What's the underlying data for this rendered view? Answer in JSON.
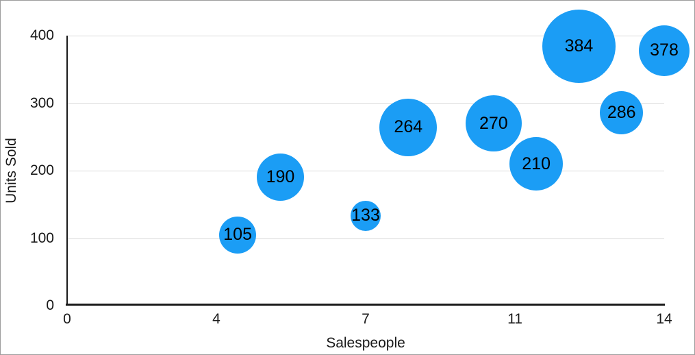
{
  "figure": {
    "background": "#ffffff",
    "border_color": "#9c9c9c",
    "text_color": "#1a1a1a"
  },
  "chart_data": {
    "type": "scatter",
    "variant": "bubble",
    "title": "",
    "xlabel": "Salespeople",
    "ylabel": "Units Sold",
    "xlim": [
      0,
      14
    ],
    "ylim": [
      0,
      400
    ],
    "grid": "horizontal",
    "legend": "none",
    "axis_color": "#1a1a1a",
    "grid_color": "#d9d9d9",
    "bubble_color": "#1b9df5",
    "bubble_label_color": "#000000",
    "x_ticks": [
      {
        "label": "0",
        "value": 0
      },
      {
        "label": "4",
        "value": 3.5
      },
      {
        "label": "7",
        "value": 7
      },
      {
        "label": "11",
        "value": 10.5
      },
      {
        "label": "14",
        "value": 14
      }
    ],
    "y_ticks": [
      {
        "label": "0",
        "value": 0
      },
      {
        "label": "100",
        "value": 100
      },
      {
        "label": "200",
        "value": 200
      },
      {
        "label": "300",
        "value": 300
      },
      {
        "label": "400",
        "value": 400
      }
    ],
    "points": [
      {
        "x": 4,
        "y": 105,
        "label": "105",
        "radius_px": 27
      },
      {
        "x": 5,
        "y": 190,
        "label": "190",
        "radius_px": 34.5
      },
      {
        "x": 7,
        "y": 133,
        "label": "133",
        "radius_px": 22
      },
      {
        "x": 8,
        "y": 264,
        "label": "264",
        "radius_px": 42
      },
      {
        "x": 10,
        "y": 270,
        "label": "270",
        "radius_px": 41
      },
      {
        "x": 11,
        "y": 210,
        "label": "210",
        "radius_px": 39
      },
      {
        "x": 12,
        "y": 384,
        "label": "384",
        "radius_px": 53.5
      },
      {
        "x": 13,
        "y": 286,
        "label": "286",
        "radius_px": 31.5
      },
      {
        "x": 14,
        "y": 378,
        "label": "378",
        "radius_px": 37
      }
    ]
  }
}
